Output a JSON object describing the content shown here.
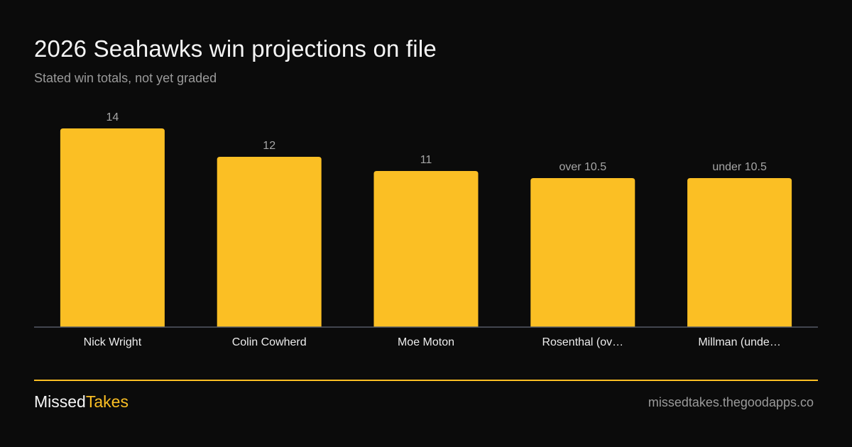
{
  "title": "2026 Seahawks win projections on file",
  "subtitle": "Stated win totals, not yet graded",
  "chart_data": {
    "type": "bar",
    "categories": [
      "Nick Wright",
      "Colin Cowherd",
      "Moe Moton",
      "Rosenthal (ov…",
      "Millman (unde…"
    ],
    "values": [
      14,
      12,
      11,
      10.5,
      10.5
    ],
    "data_labels": [
      "14",
      "12",
      "11",
      "over 10.5",
      "under 10.5"
    ],
    "ylim": [
      0,
      14
    ],
    "grid": false,
    "bar_color": "#fbbf24",
    "axis_color": "#555b66"
  },
  "footer": {
    "brand_part1": "Missed",
    "brand_part2": "Takes",
    "website": "missedtakes.thegoodapps.co"
  },
  "colors": {
    "background": "#0b0b0b",
    "accent": "#fbbf24",
    "muted_text": "#9a9a9a"
  }
}
